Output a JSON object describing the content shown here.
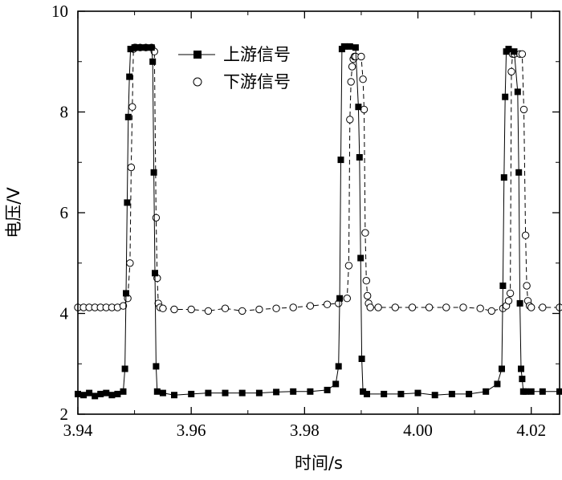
{
  "chart_data": {
    "type": "line",
    "title": "",
    "xlabel": "时间/s",
    "ylabel": "电压/V",
    "xlim": [
      3.94,
      4.025
    ],
    "ylim": [
      2,
      10
    ],
    "xticks": [
      3.94,
      3.96,
      3.98,
      4.0,
      4.02
    ],
    "xtick_labels": [
      "3.94",
      "3.96",
      "3.98",
      "4.00",
      "4.02"
    ],
    "yticks": [
      2,
      4,
      6,
      8,
      10
    ],
    "ytick_labels": [
      "2",
      "4",
      "6",
      "8",
      "10"
    ],
    "grid": false,
    "legend_position": "top-center",
    "series": [
      {
        "name": "上游信号",
        "marker": "filled-square",
        "line": "solid",
        "x": [
          3.94,
          3.941,
          3.942,
          3.943,
          3.944,
          3.945,
          3.946,
          3.947,
          3.948,
          3.9483,
          3.9485,
          3.9487,
          3.9489,
          3.9491,
          3.9493,
          3.95,
          3.951,
          3.952,
          3.953,
          3.9532,
          3.9534,
          3.9536,
          3.9538,
          3.954,
          3.955,
          3.957,
          3.96,
          3.963,
          3.966,
          3.969,
          3.972,
          3.975,
          3.978,
          3.981,
          3.984,
          3.9855,
          3.986,
          3.9862,
          3.9864,
          3.9866,
          3.987,
          3.988,
          3.989,
          3.9895,
          3.9897,
          3.9899,
          3.9901,
          3.9903,
          3.991,
          3.994,
          3.997,
          4.0,
          4.003,
          4.006,
          4.009,
          4.012,
          4.014,
          4.0148,
          4.015,
          4.0152,
          4.0154,
          4.0156,
          4.016,
          4.017,
          4.0176,
          4.0178,
          4.018,
          4.0182,
          4.0184,
          4.0186,
          4.019,
          4.02,
          4.022,
          4.025
        ],
        "y": [
          2.4,
          2.38,
          2.42,
          2.36,
          2.4,
          2.42,
          2.38,
          2.4,
          2.45,
          2.9,
          4.4,
          6.2,
          7.9,
          8.7,
          9.25,
          9.28,
          9.28,
          9.28,
          9.28,
          9.0,
          6.8,
          4.8,
          2.95,
          2.45,
          2.42,
          2.38,
          2.4,
          2.42,
          2.42,
          2.42,
          2.42,
          2.44,
          2.45,
          2.45,
          2.48,
          2.6,
          2.95,
          4.3,
          7.05,
          9.25,
          9.3,
          9.3,
          9.28,
          8.1,
          7.1,
          5.1,
          3.1,
          2.45,
          2.4,
          2.4,
          2.4,
          2.42,
          2.38,
          2.4,
          2.4,
          2.45,
          2.6,
          2.9,
          4.55,
          6.7,
          8.3,
          9.2,
          9.25,
          9.2,
          8.4,
          6.8,
          4.2,
          2.9,
          2.7,
          2.45,
          2.45,
          2.45,
          2.45,
          2.45
        ]
      },
      {
        "name": "下游信号",
        "marker": "open-circle",
        "line": "dashed",
        "x": [
          3.94,
          3.941,
          3.942,
          3.943,
          3.944,
          3.945,
          3.946,
          3.947,
          3.948,
          3.9488,
          3.9492,
          3.9494,
          3.9496,
          3.9498,
          3.95,
          3.9502,
          3.951,
          3.952,
          3.953,
          3.9535,
          3.9538,
          3.954,
          3.9542,
          3.9545,
          3.955,
          3.957,
          3.96,
          3.963,
          3.966,
          3.969,
          3.972,
          3.975,
          3.978,
          3.981,
          3.984,
          3.986,
          3.9875,
          3.9878,
          3.988,
          3.9882,
          3.9884,
          3.9886,
          3.9888,
          3.989,
          3.99,
          3.9903,
          3.9905,
          3.9907,
          3.9909,
          3.9911,
          3.9913,
          3.9916,
          3.993,
          3.996,
          3.999,
          4.002,
          4.005,
          4.008,
          4.011,
          4.013,
          4.015,
          4.0156,
          4.016,
          4.0163,
          4.0165,
          4.0167,
          4.017,
          4.018,
          4.0184,
          4.0187,
          4.019,
          4.0192,
          4.0194,
          4.0197,
          4.02,
          4.022,
          4.025
        ],
        "y": [
          4.12,
          4.12,
          4.12,
          4.12,
          4.12,
          4.12,
          4.12,
          4.12,
          4.15,
          4.3,
          5.0,
          6.9,
          8.1,
          9.25,
          9.28,
          9.28,
          9.28,
          9.28,
          9.28,
          9.2,
          5.9,
          4.7,
          4.2,
          4.12,
          4.1,
          4.08,
          4.08,
          4.05,
          4.1,
          4.05,
          4.08,
          4.1,
          4.12,
          4.15,
          4.18,
          4.2,
          4.3,
          4.95,
          7.85,
          8.6,
          8.9,
          9.05,
          9.1,
          9.1,
          9.1,
          8.65,
          8.05,
          5.6,
          4.65,
          4.35,
          4.2,
          4.12,
          4.12,
          4.12,
          4.12,
          4.12,
          4.12,
          4.12,
          4.1,
          4.05,
          4.1,
          4.15,
          4.25,
          4.4,
          8.8,
          9.15,
          9.15,
          9.15,
          9.15,
          8.05,
          5.55,
          4.55,
          4.25,
          4.15,
          4.12,
          4.12,
          4.12
        ]
      }
    ]
  }
}
